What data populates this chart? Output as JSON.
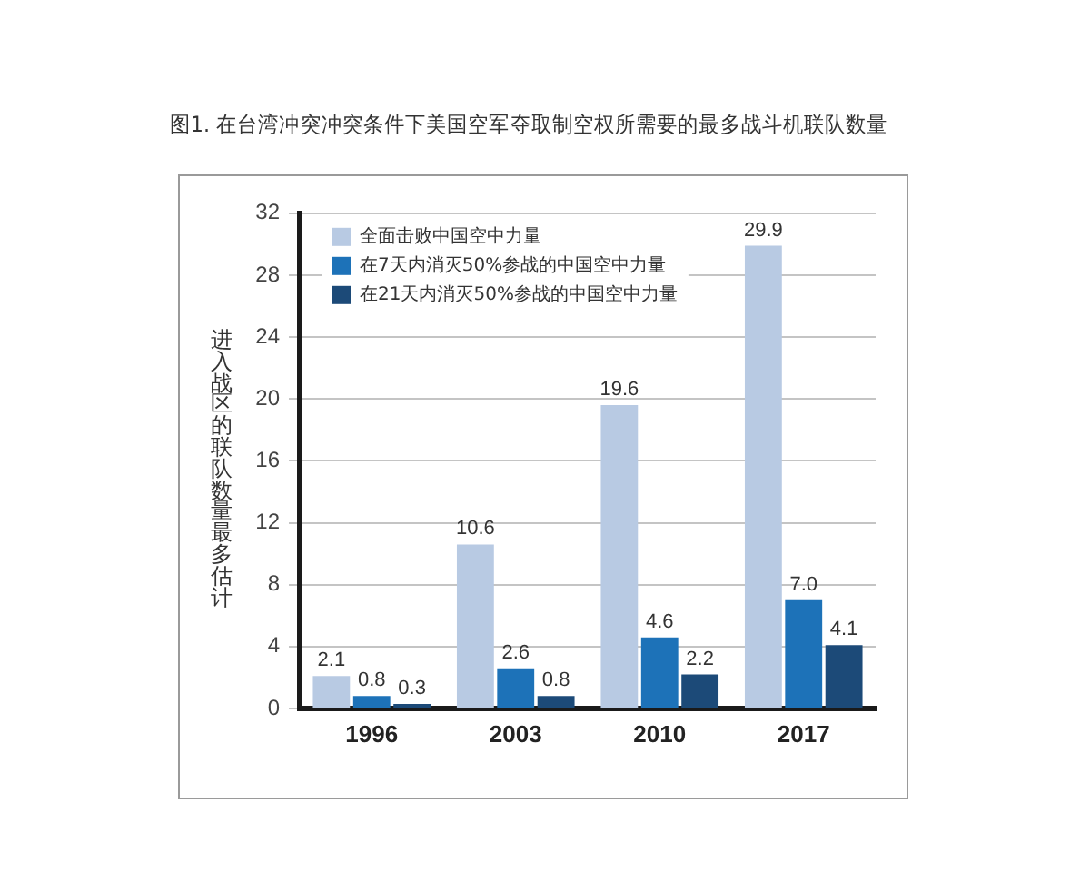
{
  "chart_data": {
    "type": "bar",
    "title": "图1. 在台湾冲突冲突条件下美国空军夺取制空权所需要的最多战斗机联队数量",
    "ylabel": "进入战区的联队数量最多估计",
    "categories": [
      "1996",
      "2003",
      "2010",
      "2017"
    ],
    "series": [
      {
        "name": "全面击败中国空中力量",
        "color": "#b8cae3",
        "values": [
          2.1,
          10.6,
          19.6,
          29.9
        ],
        "value_labels": [
          "2.1",
          "10.6",
          "19.6",
          "29.9"
        ]
      },
      {
        "name": "在7天内消灭50%参战的中国空中力量",
        "color": "#1d72b8",
        "values": [
          0.8,
          2.6,
          4.6,
          7.0
        ],
        "value_labels": [
          "0.8",
          "2.6",
          "4.6",
          "7.0"
        ]
      },
      {
        "name": "在21天内消灭50%参战的中国空中力量",
        "color": "#1c4a78",
        "values": [
          0.3,
          0.8,
          2.2,
          4.1
        ],
        "value_labels": [
          "0.3",
          "0.8",
          "2.2",
          "4.1"
        ]
      }
    ],
    "ylim": [
      0,
      32
    ],
    "yticks": [
      0,
      4,
      8,
      12,
      16,
      20,
      24,
      28,
      32
    ],
    "grid": "y",
    "legend": "top left"
  }
}
